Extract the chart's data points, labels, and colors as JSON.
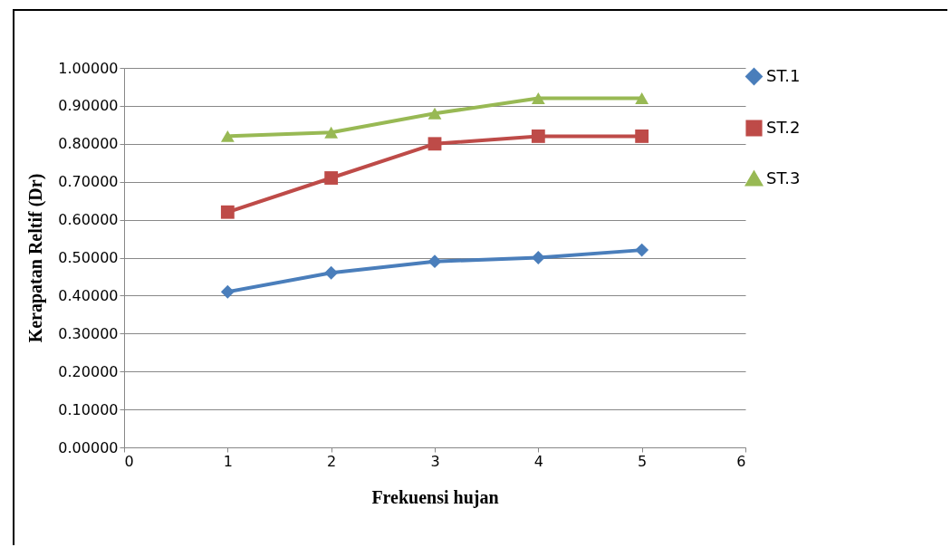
{
  "chart_data": {
    "type": "line",
    "xlabel": "Frekuensi hujan",
    "ylabel": "Kerapatan Reltif (Dr)",
    "x": [
      1,
      2,
      3,
      4,
      5
    ],
    "series": [
      {
        "name": "ST.1",
        "color": "#4a7ebb",
        "marker": "diamond",
        "values": [
          0.41,
          0.46,
          0.49,
          0.5,
          0.52
        ]
      },
      {
        "name": "ST.2",
        "color": "#be4b48",
        "marker": "square",
        "values": [
          0.62,
          0.71,
          0.8,
          0.82,
          0.82
        ]
      },
      {
        "name": "ST.3",
        "color": "#98b954",
        "marker": "triangle",
        "values": [
          0.82,
          0.83,
          0.88,
          0.92,
          0.92
        ]
      }
    ],
    "xlim": [
      0,
      6
    ],
    "xticks": [
      0,
      1,
      2,
      3,
      4,
      5,
      6
    ],
    "ylim": [
      0,
      1
    ],
    "yticks": [
      {
        "value": 0,
        "label": "0.00000"
      },
      {
        "value": 0.1,
        "label": "0.10000"
      },
      {
        "value": 0.2,
        "label": "0.20000"
      },
      {
        "value": 0.3,
        "label": "0.30000"
      },
      {
        "value": 0.4,
        "label": "0.40000"
      },
      {
        "value": 0.5,
        "label": "0.50000"
      },
      {
        "value": 0.6,
        "label": "0.60000"
      },
      {
        "value": 0.7,
        "label": "0.70000"
      },
      {
        "value": 0.8,
        "label": "0.80000"
      },
      {
        "value": 0.9,
        "label": "0.90000"
      },
      {
        "value": 1,
        "label": "1.00000"
      }
    ],
    "grid": "y",
    "legend": "right",
    "line_style": "solid"
  }
}
